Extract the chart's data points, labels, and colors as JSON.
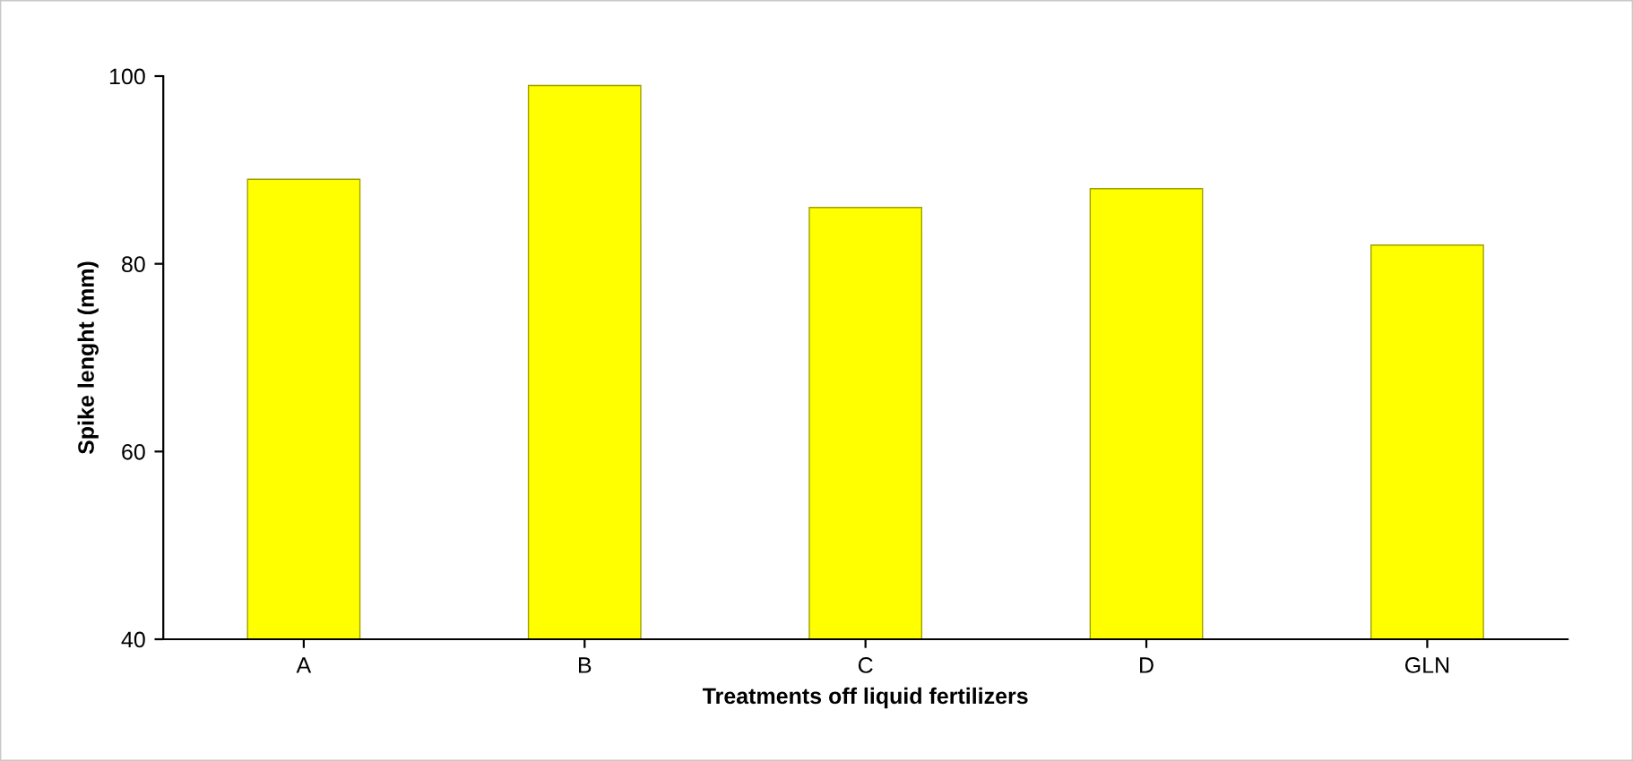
{
  "chart_data": {
    "type": "bar",
    "xlabel": "Treatments off liquid fertilizers",
    "ylabel": "Spike lenght (mm)",
    "categories": [
      "A",
      "B",
      "C",
      "D",
      "GLN"
    ],
    "values": [
      89,
      99,
      86,
      88,
      82
    ],
    "color": "#ffff00",
    "ylim": [
      40,
      100
    ],
    "yticks": [
      40,
      60,
      80,
      100
    ],
    "grid": false
  }
}
